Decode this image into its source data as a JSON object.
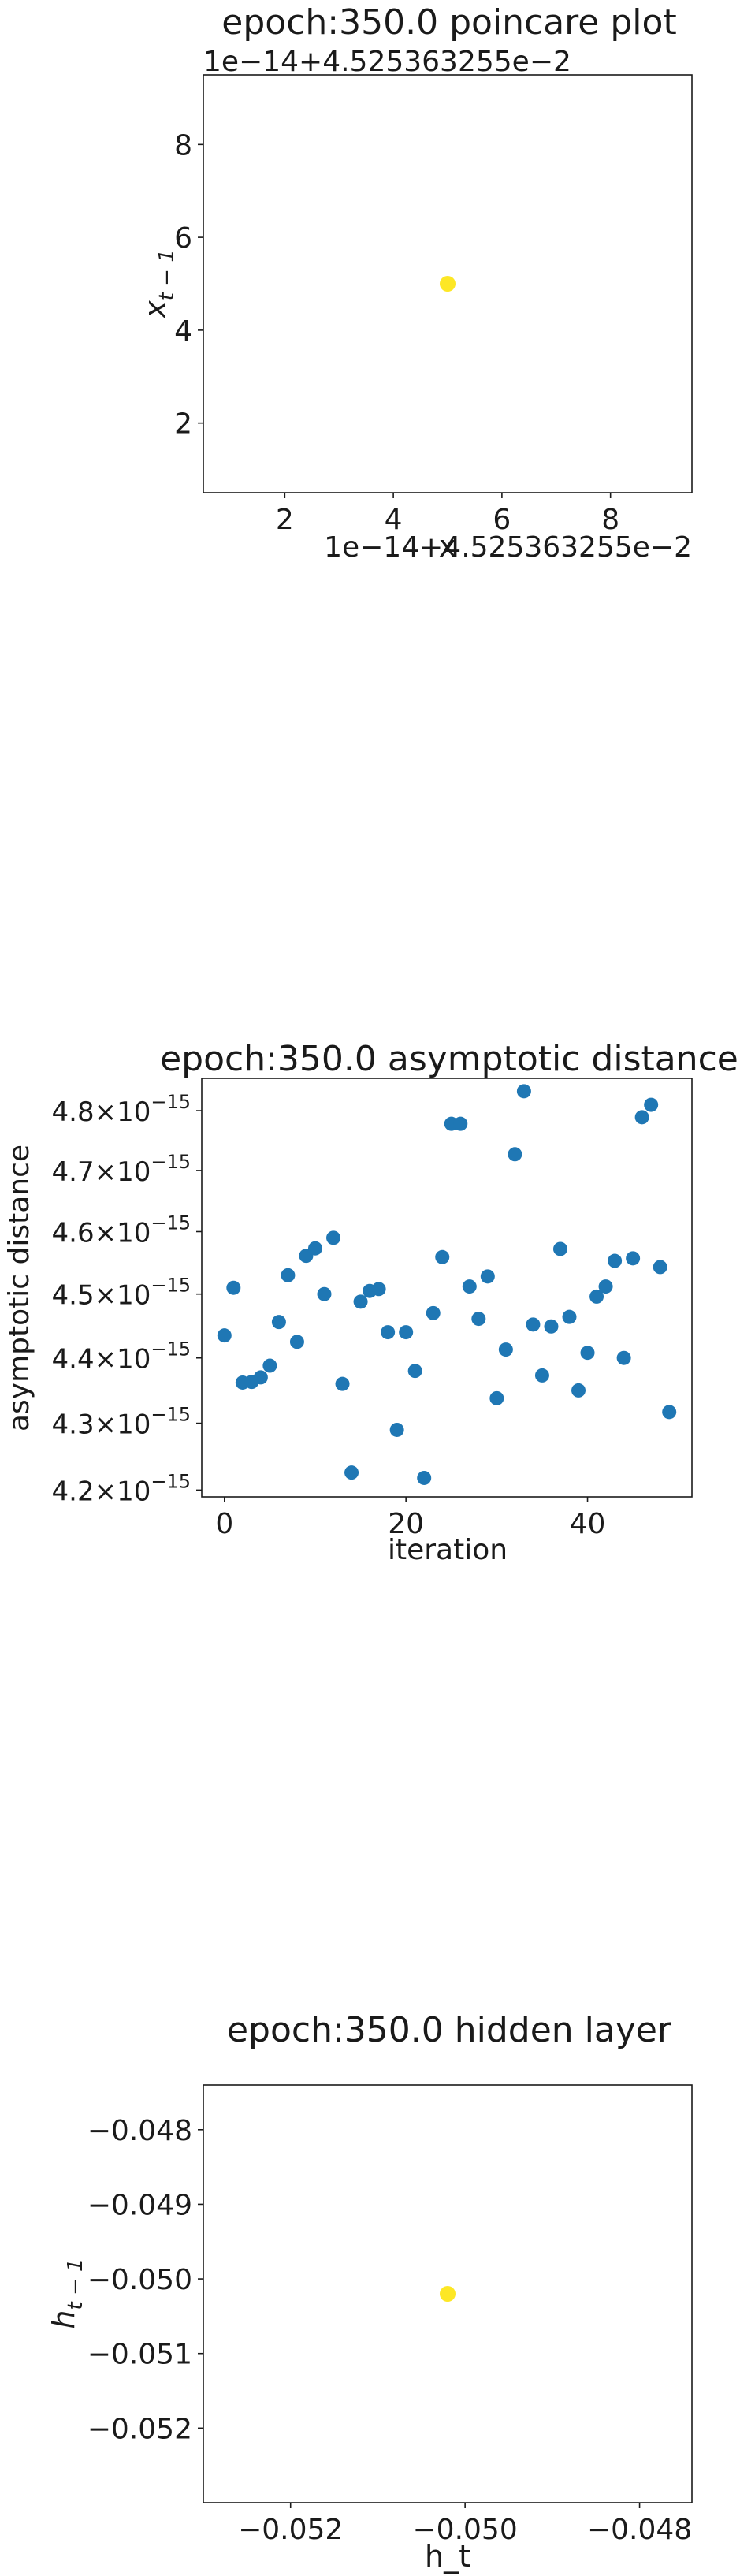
{
  "chart_data": [
    {
      "type": "scatter",
      "title": "epoch:350.0 poincare plot",
      "xlabel": "x",
      "ylabel": "x_{t-1}",
      "ylabel_main": "x",
      "ylabel_sub": "t − 1",
      "x_offset_label": "1e−14+4.525363255e−2",
      "y_offset_label": "1e−14+4.525363255e−2",
      "xlim": [
        0.5,
        9.5
      ],
      "ylim": [
        0.5,
        9.5
      ],
      "xticks": [
        2,
        4,
        6,
        8
      ],
      "yticks": [
        2,
        4,
        6,
        8
      ],
      "point_color": "#fde725",
      "points": [
        {
          "x": 5.0,
          "y": 5.0
        }
      ]
    },
    {
      "type": "scatter",
      "title": "epoch:350.0 asymptotic distance",
      "xlabel": "iteration",
      "ylabel": "asymptotic distance",
      "xlim": [
        -2.5,
        51.5
      ],
      "ylim": [
        4.19,
        4.855
      ],
      "y_scale": "log",
      "y_unit_exponent": "−15",
      "xticks": [
        0,
        20,
        40
      ],
      "yticks": [
        4.2,
        4.3,
        4.4,
        4.5,
        4.6,
        4.7,
        4.8
      ],
      "ytick_labels": [
        "4.2",
        "4.3",
        "4.4",
        "4.5",
        "4.6",
        "4.7",
        "4.8"
      ],
      "point_color": "#1f77b4",
      "points": [
        {
          "x": 0,
          "y": 4.435
        },
        {
          "x": 1,
          "y": 4.51
        },
        {
          "x": 2,
          "y": 4.362
        },
        {
          "x": 3,
          "y": 4.363
        },
        {
          "x": 4,
          "y": 4.37
        },
        {
          "x": 5,
          "y": 4.388
        },
        {
          "x": 6,
          "y": 4.456
        },
        {
          "x": 7,
          "y": 4.53
        },
        {
          "x": 8,
          "y": 4.425
        },
        {
          "x": 9,
          "y": 4.561
        },
        {
          "x": 10,
          "y": 4.573
        },
        {
          "x": 11,
          "y": 4.5
        },
        {
          "x": 12,
          "y": 4.59
        },
        {
          "x": 13,
          "y": 4.36
        },
        {
          "x": 14,
          "y": 4.226
        },
        {
          "x": 15,
          "y": 4.488
        },
        {
          "x": 16,
          "y": 4.505
        },
        {
          "x": 17,
          "y": 4.508
        },
        {
          "x": 18,
          "y": 4.44
        },
        {
          "x": 19,
          "y": 4.29
        },
        {
          "x": 20,
          "y": 4.44
        },
        {
          "x": 21,
          "y": 4.38
        },
        {
          "x": 22,
          "y": 4.218
        },
        {
          "x": 23,
          "y": 4.47
        },
        {
          "x": 24,
          "y": 4.559
        },
        {
          "x": 25,
          "y": 4.778
        },
        {
          "x": 26,
          "y": 4.778
        },
        {
          "x": 27,
          "y": 4.512
        },
        {
          "x": 28,
          "y": 4.461
        },
        {
          "x": 29,
          "y": 4.528
        },
        {
          "x": 30,
          "y": 4.338
        },
        {
          "x": 31,
          "y": 4.413
        },
        {
          "x": 32,
          "y": 4.727
        },
        {
          "x": 33,
          "y": 4.833
        },
        {
          "x": 34,
          "y": 4.452
        },
        {
          "x": 35,
          "y": 4.373
        },
        {
          "x": 36,
          "y": 4.449
        },
        {
          "x": 37,
          "y": 4.572
        },
        {
          "x": 38,
          "y": 4.464
        },
        {
          "x": 39,
          "y": 4.35
        },
        {
          "x": 40,
          "y": 4.408
        },
        {
          "x": 41,
          "y": 4.496
        },
        {
          "x": 42,
          "y": 4.512
        },
        {
          "x": 43,
          "y": 4.553
        },
        {
          "x": 44,
          "y": 4.4
        },
        {
          "x": 45,
          "y": 4.557
        },
        {
          "x": 46,
          "y": 4.789
        },
        {
          "x": 47,
          "y": 4.81
        },
        {
          "x": 48,
          "y": 4.543
        },
        {
          "x": 49,
          "y": 4.317
        }
      ]
    },
    {
      "type": "scatter",
      "title": "epoch:350.0 hidden layer",
      "xlabel": "h_t",
      "ylabel": "h_{t-1}",
      "ylabel_main": "h",
      "ylabel_sub": "t − 1",
      "xlim": [
        -0.053,
        -0.0474
      ],
      "ylim": [
        -0.053,
        -0.0474
      ],
      "xticks": [
        -0.052,
        -0.05,
        -0.048
      ],
      "yticks": [
        -0.052,
        -0.051,
        -0.05,
        -0.049,
        -0.048
      ],
      "xtick_labels": [
        "−0.052",
        "−0.050",
        "−0.048"
      ],
      "ytick_labels": [
        "−0.052",
        "−0.051",
        "−0.050",
        "−0.049",
        "−0.048"
      ],
      "point_color": "#fde725",
      "points": [
        {
          "x": -0.0502,
          "y": -0.0502
        }
      ]
    }
  ]
}
